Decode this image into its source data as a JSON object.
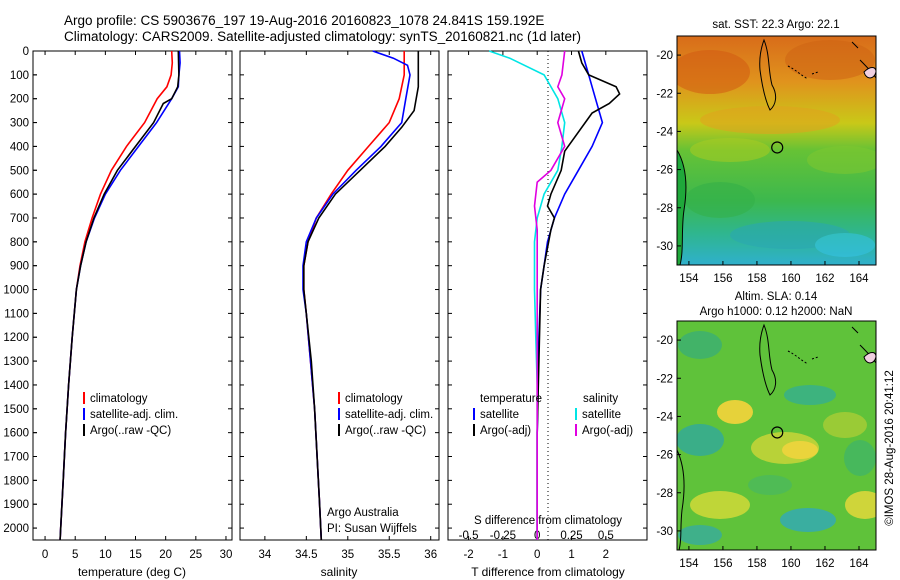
{
  "header": {
    "line1": "Argo profile: CS 5903676_197 19-Aug-2016 20160823_1078 24.841S 159.192E",
    "line2": "Climatology: CARS2009. Satellite-adjusted climatology: synTS_20160821.nc (1d later)"
  },
  "credit": "Argo Australia",
  "pi": "PI: Susan Wijffels",
  "timestamp": "©IMOS 28-Aug-2016 20:41:12",
  "colors": {
    "climatology": "#ff0000",
    "satellite": "#0000ff",
    "argo": "#000000",
    "sal_satellite": "#00e5e5",
    "sal_argo": "#e000e0"
  },
  "chart_data": [
    {
      "type": "line",
      "xlabel": "temperature (deg C)",
      "xlim": [
        -2,
        31
      ],
      "xticks": [
        0,
        5,
        10,
        15,
        20,
        25,
        30
      ],
      "ylim": [
        2050,
        0
      ],
      "yticks": [
        0,
        100,
        200,
        300,
        400,
        500,
        600,
        700,
        800,
        900,
        1000,
        1100,
        1200,
        1300,
        1400,
        1500,
        1600,
        1700,
        1800,
        1900,
        2000
      ],
      "legend": [
        "climatology",
        "satellite-adj. clim.",
        "Argo(..raw -QC)"
      ],
      "series": [
        {
          "name": "climatology",
          "color": "#ff0000",
          "points": [
            [
              21.0,
              0
            ],
            [
              21.1,
              50
            ],
            [
              20.9,
              100
            ],
            [
              20.2,
              150
            ],
            [
              18.6,
              200
            ],
            [
              16.5,
              300
            ],
            [
              13.5,
              400
            ],
            [
              11.0,
              500
            ],
            [
              9.2,
              600
            ],
            [
              7.8,
              700
            ],
            [
              6.6,
              800
            ],
            [
              5.8,
              900
            ],
            [
              5.2,
              1000
            ],
            [
              4.5,
              1200
            ],
            [
              3.9,
              1400
            ],
            [
              3.4,
              1600
            ],
            [
              3.0,
              1800
            ],
            [
              2.6,
              2000
            ],
            [
              2.5,
              2050
            ]
          ]
        },
        {
          "name": "satellite-adj. clim.",
          "color": "#0000ff",
          "points": [
            [
              22.3,
              0
            ],
            [
              22.4,
              50
            ],
            [
              22.2,
              100
            ],
            [
              22.1,
              150
            ],
            [
              21.0,
              200
            ],
            [
              18.5,
              300
            ],
            [
              15.5,
              400
            ],
            [
              12.5,
              500
            ],
            [
              10.0,
              600
            ],
            [
              8.2,
              700
            ],
            [
              6.8,
              800
            ],
            [
              5.9,
              900
            ],
            [
              5.2,
              1000
            ],
            [
              4.5,
              1200
            ],
            [
              3.9,
              1400
            ],
            [
              3.4,
              1600
            ],
            [
              3.0,
              1800
            ],
            [
              2.6,
              2000
            ],
            [
              2.5,
              2050
            ]
          ]
        },
        {
          "name": "Argo(..raw -QC)",
          "color": "#000000",
          "points": [
            [
              22.1,
              0
            ],
            [
              22.2,
              100
            ],
            [
              22.0,
              150
            ],
            [
              21.0,
              200
            ],
            [
              19.6,
              220
            ],
            [
              18.0,
              300
            ],
            [
              15.0,
              400
            ],
            [
              12.0,
              500
            ],
            [
              9.8,
              600
            ],
            [
              8.1,
              700
            ],
            [
              6.8,
              800
            ],
            [
              5.9,
              900
            ],
            [
              5.2,
              1000
            ],
            [
              4.5,
              1200
            ],
            [
              3.9,
              1400
            ],
            [
              3.4,
              1600
            ],
            [
              3.0,
              1800
            ],
            [
              2.6,
              2000
            ],
            [
              2.5,
              2050
            ]
          ]
        }
      ]
    },
    {
      "type": "line",
      "xlabel": "salinity",
      "xlim": [
        33.7,
        36.1
      ],
      "xticks": [
        34,
        34.5,
        35,
        35.5,
        36
      ],
      "ylim": [
        2050,
        0
      ],
      "legend": [
        "climatology",
        "satellite-adj. clim.",
        "Argo(..raw -QC)"
      ],
      "series": [
        {
          "name": "climatology",
          "color": "#ff0000",
          "points": [
            [
              35.68,
              0
            ],
            [
              35.68,
              100
            ],
            [
              35.62,
              200
            ],
            [
              35.5,
              300
            ],
            [
              35.25,
              400
            ],
            [
              35.0,
              500
            ],
            [
              34.8,
              600
            ],
            [
              34.62,
              700
            ],
            [
              34.52,
              800
            ],
            [
              34.47,
              900
            ],
            [
              34.47,
              1000
            ],
            [
              34.5,
              1100
            ],
            [
              34.55,
              1300
            ],
            [
              34.6,
              1500
            ],
            [
              34.63,
              1700
            ],
            [
              34.66,
              1900
            ],
            [
              34.68,
              2050
            ]
          ]
        },
        {
          "name": "satellite-adj. clim.",
          "color": "#0000ff",
          "points": [
            [
              35.3,
              0
            ],
            [
              35.55,
              30
            ],
            [
              35.72,
              60
            ],
            [
              35.75,
              100
            ],
            [
              35.7,
              200
            ],
            [
              35.65,
              300
            ],
            [
              35.4,
              400
            ],
            [
              35.1,
              500
            ],
            [
              34.82,
              600
            ],
            [
              34.62,
              700
            ],
            [
              34.5,
              800
            ],
            [
              34.46,
              900
            ],
            [
              34.46,
              1000
            ],
            [
              34.5,
              1100
            ],
            [
              34.55,
              1300
            ],
            [
              34.6,
              1500
            ],
            [
              34.63,
              1700
            ],
            [
              34.66,
              1900
            ],
            [
              34.68,
              2050
            ]
          ]
        },
        {
          "name": "Argo(..raw -QC)",
          "color": "#000000",
          "points": [
            [
              35.85,
              0
            ],
            [
              35.85,
              150
            ],
            [
              35.8,
              250
            ],
            [
              35.65,
              320
            ],
            [
              35.45,
              400
            ],
            [
              35.15,
              500
            ],
            [
              34.85,
              600
            ],
            [
              34.65,
              700
            ],
            [
              34.52,
              800
            ],
            [
              34.47,
              900
            ],
            [
              34.47,
              1000
            ],
            [
              34.5,
              1100
            ],
            [
              34.56,
              1300
            ],
            [
              34.6,
              1500
            ],
            [
              34.63,
              1700
            ],
            [
              34.66,
              1900
            ],
            [
              34.68,
              2050
            ]
          ]
        }
      ]
    },
    {
      "type": "line",
      "xlabel": "T difference from climatology",
      "xlabel2": "S difference from climatology",
      "xlim": [
        -2.6,
        3.2
      ],
      "xticks": [
        -2,
        -1,
        0,
        1,
        2
      ],
      "xticks2": [
        -0.5,
        -0.25,
        0,
        0.25,
        0.5
      ],
      "ylim": [
        2050,
        0
      ],
      "legend_headers": [
        "temperature",
        "salinity"
      ],
      "legend": [
        "satellite",
        "Argo(-adj)",
        "satellite",
        "Argo(-adj)"
      ],
      "series": [
        {
          "name": "satellite",
          "group": "temperature",
          "color": "#0000ff",
          "points": [
            [
              1.3,
              0
            ],
            [
              1.4,
              50
            ],
            [
              1.5,
              100
            ],
            [
              1.6,
              150
            ],
            [
              1.7,
              200
            ],
            [
              1.9,
              300
            ],
            [
              1.6,
              400
            ],
            [
              1.2,
              500
            ],
            [
              0.8,
              600
            ],
            [
              0.5,
              700
            ],
            [
              0.3,
              800
            ],
            [
              0.2,
              900
            ],
            [
              0.1,
              1000
            ],
            [
              0.05,
              1200
            ],
            [
              0.0,
              1600
            ],
            [
              0.0,
              2050
            ]
          ]
        },
        {
          "name": "Argo(-adj)",
          "group": "temperature",
          "color": "#000000",
          "points": [
            [
              1.2,
              0
            ],
            [
              1.3,
              50
            ],
            [
              1.5,
              100
            ],
            [
              2.3,
              150
            ],
            [
              2.4,
              180
            ],
            [
              2.1,
              220
            ],
            [
              1.6,
              260
            ],
            [
              1.4,
              300
            ],
            [
              0.8,
              420
            ],
            [
              0.7,
              500
            ],
            [
              0.4,
              600
            ],
            [
              0.3,
              650
            ],
            [
              0.5,
              700
            ],
            [
              0.4,
              750
            ],
            [
              0.2,
              900
            ],
            [
              0.1,
              1000
            ],
            [
              0.05,
              1300
            ],
            [
              0.0,
              1600
            ],
            [
              0.0,
              2050
            ]
          ]
        },
        {
          "name": "satellite",
          "group": "salinity",
          "color": "#00e5e5",
          "points": [
            [
              -0.35,
              0
            ],
            [
              -0.2,
              30
            ],
            [
              0.05,
              100
            ],
            [
              0.15,
              200
            ],
            [
              0.2,
              300
            ],
            [
              0.18,
              400
            ],
            [
              0.15,
              500
            ],
            [
              0.05,
              600
            ],
            [
              0.0,
              700
            ],
            [
              -0.02,
              800
            ],
            [
              -0.02,
              1000
            ],
            [
              -0.01,
              1200
            ],
            [
              0.0,
              1400
            ],
            [
              0.0,
              2050
            ]
          ]
        },
        {
          "name": "Argo(-adj)",
          "group": "salinity",
          "color": "#e000e0",
          "points": [
            [
              0.2,
              0
            ],
            [
              0.18,
              100
            ],
            [
              0.15,
              150
            ],
            [
              0.2,
              200
            ],
            [
              0.15,
              300
            ],
            [
              0.2,
              400
            ],
            [
              0.1,
              500
            ],
            [
              0.0,
              550
            ],
            [
              -0.02,
              650
            ],
            [
              0.0,
              750
            ],
            [
              0.0,
              900
            ],
            [
              0.0,
              1100
            ],
            [
              0.0,
              1300
            ],
            [
              0.0,
              2050
            ]
          ]
        }
      ]
    },
    {
      "type": "heatmap",
      "title": "sat. SST: 22.3 Argo: 22.1",
      "xticks": [
        154,
        156,
        158,
        160,
        162,
        164
      ],
      "yticks": [
        -20,
        -22,
        -24,
        -26,
        -28,
        -30
      ],
      "xlim": [
        153.3,
        165
      ],
      "ylim": [
        -31,
        -19
      ],
      "marker": {
        "lon": 159.192,
        "lat": -24.841
      }
    },
    {
      "type": "heatmap",
      "title": "Altim. SLA: 0.14",
      "subtitle": "Argo h1000: 0.12 h2000: NaN",
      "xticks": [
        154,
        156,
        158,
        160,
        162,
        164
      ],
      "yticks": [
        -20,
        -22,
        -24,
        -26,
        -28,
        -30
      ],
      "xlim": [
        153.3,
        165
      ],
      "ylim": [
        -31,
        -19
      ],
      "marker": {
        "lon": 159.192,
        "lat": -24.841
      }
    }
  ]
}
